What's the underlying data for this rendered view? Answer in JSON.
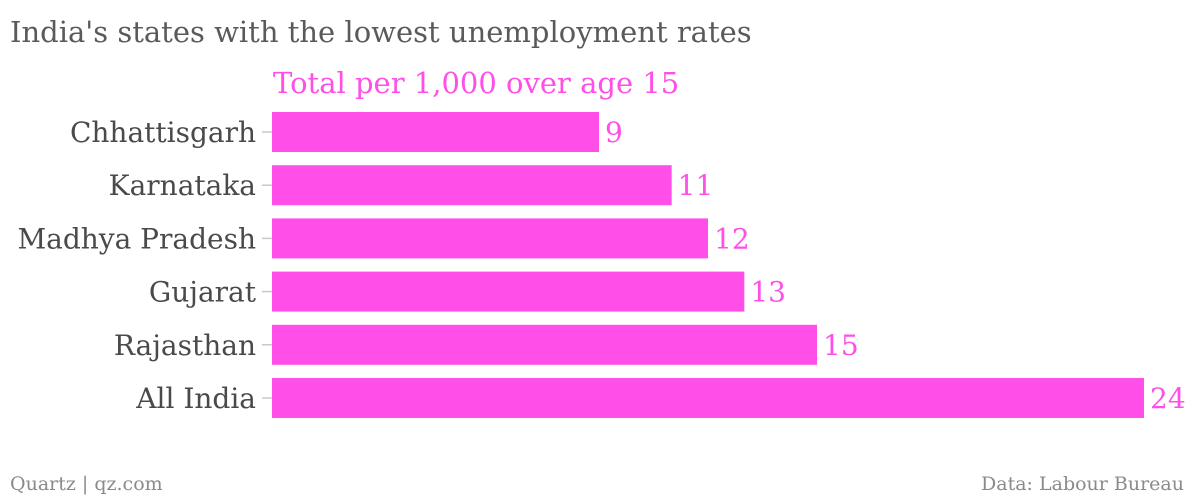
{
  "chart_data": {
    "type": "bar",
    "orientation": "horizontal",
    "title": "India's states with the lowest unemployment rates",
    "categories": [
      "Chhattisgarh",
      "Karnataka",
      "Madhya Pradesh",
      "Gujarat",
      "Rajasthan",
      "All India"
    ],
    "series": [
      {
        "name": "Total per 1,000 over age 15",
        "values": [
          9,
          11,
          12,
          13,
          15,
          24
        ]
      }
    ],
    "xlim": [
      0,
      24
    ],
    "grid": false,
    "legend": "top-left",
    "colors": {
      "bar": "#ff4fe8",
      "label": "#ff4fe8",
      "text": "#4a4a4a"
    }
  },
  "footer": {
    "source_left": "Quartz | qz.com",
    "source_right": "Data: Labour Bureau"
  }
}
